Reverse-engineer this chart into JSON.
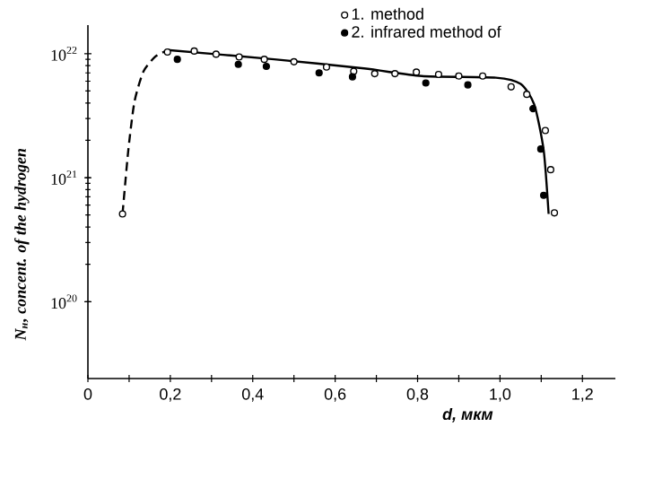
{
  "chart_data": {
    "type": "scatter",
    "xlabel": "d, мкм",
    "ylabel": "N$_{н}$, concent. of the hydrogen",
    "xlim": [
      0,
      1.28
    ],
    "ylim": [
      2.4e+19,
      1.7e+22
    ],
    "log": "y",
    "legend": "top right",
    "xticks": [
      0,
      {
        "value": 0.1,
        "label": null
      },
      {
        "value": 0.2,
        "label": "0,2"
      },
      {
        "value": 0.3,
        "label": null
      },
      {
        "value": 0.4,
        "label": "0,4"
      },
      {
        "value": 0.5,
        "label": null
      },
      {
        "value": 0.6,
        "label": "0,6"
      },
      {
        "value": 0.7,
        "label": null
      },
      {
        "value": 0.8,
        "label": "0,8"
      },
      {
        "value": 0.9,
        "label": null
      },
      {
        "value": 1.0,
        "label": "1,0"
      },
      {
        "value": 1.1,
        "label": null
      },
      {
        "value": 1.2,
        "label": "1,2"
      }
    ],
    "yticks": [
      {
        "value": 1e+20,
        "label": "10$^{20}$"
      },
      {
        "value": 1e+21,
        "label": "10$^{21}$"
      },
      {
        "value": 1e+22,
        "label": "10$^{22}$"
      }
    ],
    "series": [
      {
        "name": "1. method",
        "color": "#000000",
        "marker": "circle",
        "x": [
          0.084,
          0.193,
          0.258,
          0.311,
          0.367,
          0.428,
          0.5,
          0.579,
          0.645,
          0.696,
          0.745,
          0.797,
          0.851,
          0.9,
          0.958,
          1.027,
          1.065,
          1.11,
          1.123,
          1.132
        ],
        "values": [
          5.1e+20,
          1.03e+22,
          1.05e+22,
          9.9e+21,
          9.4e+21,
          9e+21,
          8.6e+21,
          7.8e+21,
          7.2e+21,
          6.9e+21,
          6.9e+21,
          7.1e+21,
          6.8e+21,
          6.6e+21,
          6.6e+21,
          5.4e+21,
          4.7e+21,
          2.4e+21,
          1.16e+21,
          5.2e+20
        ]
      },
      {
        "name": "2. infrared method of",
        "color": "#000000",
        "marker": "circle",
        "x": [
          0.217,
          0.365,
          0.433,
          0.561,
          0.642,
          0.82,
          0.922,
          1.08,
          1.099,
          1.106
        ],
        "values": [
          9e+21,
          8.2e+21,
          7.9e+21,
          7e+21,
          6.5e+21,
          5.8e+21,
          5.6e+21,
          3.6e+21,
          1.7e+21,
          7.2e+20
        ]
      },
      {
        "type": "line",
        "color": "#000000",
        "marker": "none",
        "line_style": "solid",
        "x": [
          0.193,
          0.452,
          0.67,
          0.81,
          0.99,
          1.05,
          1.083,
          1.106,
          1.118
        ],
        "values": [
          1.07e+22,
          9e+21,
          7.6e+21,
          6.6e+21,
          6.4e+21,
          5.7e+21,
          3.9e+21,
          1.66e+21,
          5.1e+20
        ]
      },
      {
        "type": "line",
        "color": "#000000",
        "marker": "none",
        "line_style": "dashed",
        "x": [
          0.084,
          0.098,
          0.113,
          0.135,
          0.164,
          0.19
        ],
        "values": [
          5.1e+20,
          1.66e+21,
          4.1e+21,
          7.2e+21,
          9.5e+21,
          1.05e+22
        ]
      }
    ]
  }
}
